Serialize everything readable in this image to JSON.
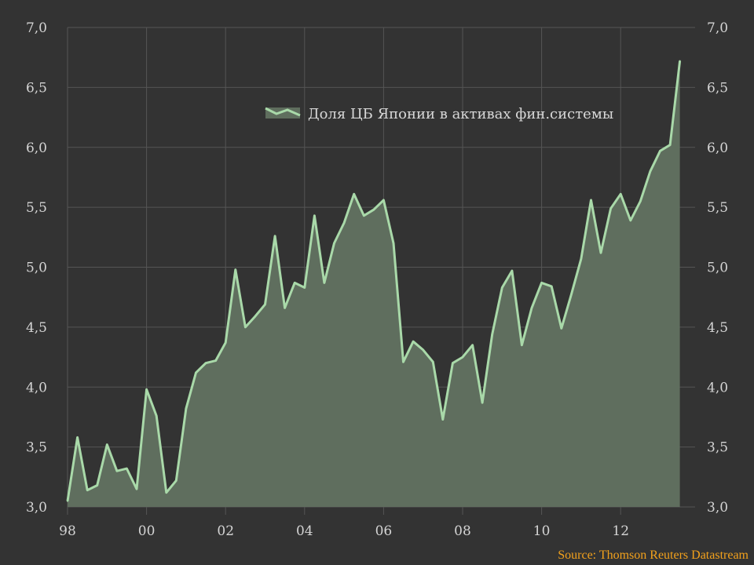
{
  "colors": {
    "background": "#333333",
    "grid": "#555555",
    "area_fill": "#5f6e5e",
    "line": "#a9d9a9",
    "text": "#d4d4d4",
    "source": "#f2a11c"
  },
  "chart_data": {
    "type": "area",
    "title": "",
    "xlabel": "",
    "ylabel": "",
    "legend_placement": "top-center",
    "grid": true,
    "x_tick_labels": [
      "98",
      "00",
      "02",
      "04",
      "06",
      "08",
      "10",
      "12"
    ],
    "x_tick_years": [
      1998,
      2000,
      2002,
      2004,
      2006,
      2008,
      2010,
      2012
    ],
    "y_ticks": [
      3.0,
      3.5,
      4.0,
      4.5,
      5.0,
      5.5,
      6.0,
      6.5,
      7.0
    ],
    "y_tick_labels": [
      "3,0",
      "3,5",
      "4,0",
      "4,5",
      "5,0",
      "5,5",
      "6,0",
      "6,5",
      "7,0"
    ],
    "ylim": [
      3.0,
      7.0
    ],
    "xlim": [
      1998.0,
      2013.75
    ],
    "series": [
      {
        "name": "Доля ЦБ Японии в активах фин.системы",
        "x": [
          1998.0,
          1998.25,
          1998.5,
          1998.75,
          1999.0,
          1999.25,
          1999.5,
          1999.75,
          2000.0,
          2000.25,
          2000.5,
          2000.75,
          2001.0,
          2001.25,
          2001.5,
          2001.75,
          2002.0,
          2002.25,
          2002.5,
          2002.75,
          2003.0,
          2003.25,
          2003.5,
          2003.75,
          2004.0,
          2004.25,
          2004.5,
          2004.75,
          2005.0,
          2005.25,
          2005.5,
          2005.75,
          2006.0,
          2006.25,
          2006.5,
          2006.75,
          2007.0,
          2007.25,
          2007.5,
          2007.75,
          2008.0,
          2008.25,
          2008.5,
          2008.75,
          2009.0,
          2009.25,
          2009.5,
          2009.75,
          2010.0,
          2010.25,
          2010.5,
          2010.75,
          2011.0,
          2011.25,
          2011.5,
          2011.75,
          2012.0,
          2012.25,
          2012.5,
          2012.75,
          2013.0,
          2013.25,
          2013.5
        ],
        "values": [
          3.05,
          3.58,
          3.14,
          3.18,
          3.52,
          3.3,
          3.32,
          3.15,
          3.98,
          3.76,
          3.12,
          3.22,
          3.82,
          4.12,
          4.2,
          4.22,
          4.37,
          4.98,
          4.5,
          4.59,
          4.69,
          5.26,
          4.66,
          4.87,
          4.83,
          5.43,
          4.87,
          5.2,
          5.37,
          5.61,
          5.43,
          5.48,
          5.56,
          5.2,
          4.21,
          4.38,
          4.31,
          4.21,
          3.73,
          4.2,
          4.25,
          4.35,
          3.87,
          4.44,
          4.83,
          4.97,
          4.35,
          4.66,
          4.87,
          4.84,
          4.49,
          4.77,
          5.07,
          5.56,
          5.12,
          5.49,
          5.61,
          5.39,
          5.55,
          5.8,
          5.97,
          6.02,
          6.72
        ]
      }
    ]
  },
  "source": {
    "label": "Source: Thomson Reuters Datastream"
  }
}
